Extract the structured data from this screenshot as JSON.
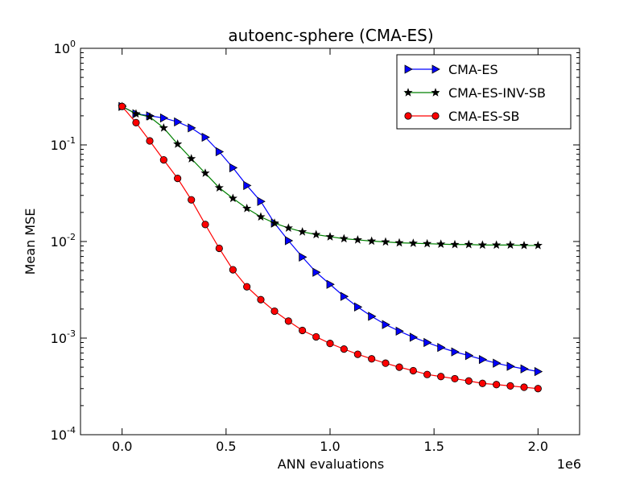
{
  "chart_data": {
    "type": "line",
    "title": "autoenc-sphere (CMA-ES)",
    "xlabel": "ANN evaluations",
    "ylabel": "Mean MSE",
    "x_offset_label": "1e6",
    "xscale": "linear",
    "yscale": "log",
    "xlim": [
      -0.2,
      2.2
    ],
    "ylim": [
      0.0001,
      1
    ],
    "x_ticks": [
      0.0,
      0.5,
      1.0,
      1.5,
      2.0
    ],
    "x_tick_labels": [
      "0.0",
      "0.5",
      "1.0",
      "1.5",
      "2.0"
    ],
    "y_tick_exponents": [
      -4,
      -3,
      -2,
      -1,
      0
    ],
    "y_tick_base": "10",
    "legend_position": "top-right",
    "series": [
      {
        "name": "CMA-ES",
        "color": "#0000ff",
        "marker": "triangle-right",
        "x": [
          0.0,
          0.067,
          0.133,
          0.2,
          0.267,
          0.333,
          0.4,
          0.467,
          0.533,
          0.6,
          0.667,
          0.733,
          0.8,
          0.867,
          0.933,
          1.0,
          1.067,
          1.133,
          1.2,
          1.267,
          1.333,
          1.4,
          1.467,
          1.533,
          1.6,
          1.667,
          1.733,
          1.8,
          1.867,
          1.933,
          2.0
        ],
        "y": [
          0.25,
          0.21,
          0.2,
          0.19,
          0.173,
          0.15,
          0.12,
          0.085,
          0.058,
          0.038,
          0.026,
          0.0155,
          0.0102,
          0.0069,
          0.0048,
          0.0036,
          0.0027,
          0.0021,
          0.00168,
          0.00138,
          0.00118,
          0.00102,
          0.0009,
          0.0008,
          0.00072,
          0.00066,
          0.0006,
          0.00055,
          0.00051,
          0.00048,
          0.00045
        ]
      },
      {
        "name": "CMA-ES-INV-SB",
        "color": "#008000",
        "marker": "star",
        "x": [
          0.0,
          0.067,
          0.133,
          0.2,
          0.267,
          0.333,
          0.4,
          0.467,
          0.533,
          0.6,
          0.667,
          0.733,
          0.8,
          0.867,
          0.933,
          1.0,
          1.067,
          1.133,
          1.2,
          1.267,
          1.333,
          1.4,
          1.467,
          1.533,
          1.6,
          1.667,
          1.733,
          1.8,
          1.867,
          1.933,
          2.0
        ],
        "y": [
          0.25,
          0.21,
          0.195,
          0.15,
          0.102,
          0.072,
          0.051,
          0.036,
          0.028,
          0.022,
          0.018,
          0.0155,
          0.0138,
          0.0126,
          0.0118,
          0.0112,
          0.0107,
          0.0104,
          0.0101,
          0.0099,
          0.0097,
          0.0096,
          0.0095,
          0.0094,
          0.0093,
          0.0093,
          0.0092,
          0.0092,
          0.0092,
          0.0091,
          0.0091
        ]
      },
      {
        "name": "CMA-ES-SB",
        "color": "#ff0000",
        "marker": "circle",
        "x": [
          0.0,
          0.067,
          0.133,
          0.2,
          0.267,
          0.333,
          0.4,
          0.467,
          0.533,
          0.6,
          0.667,
          0.733,
          0.8,
          0.867,
          0.933,
          1.0,
          1.067,
          1.133,
          1.2,
          1.267,
          1.333,
          1.4,
          1.467,
          1.533,
          1.6,
          1.667,
          1.733,
          1.8,
          1.867,
          1.933,
          2.0
        ],
        "y": [
          0.25,
          0.17,
          0.11,
          0.07,
          0.045,
          0.027,
          0.015,
          0.0085,
          0.0051,
          0.0034,
          0.0025,
          0.0019,
          0.0015,
          0.0012,
          0.00103,
          0.00088,
          0.00077,
          0.00068,
          0.00061,
          0.00055,
          0.0005,
          0.00046,
          0.00042,
          0.0004,
          0.00038,
          0.00036,
          0.00034,
          0.00033,
          0.00032,
          0.00031,
          0.0003
        ]
      }
    ]
  }
}
